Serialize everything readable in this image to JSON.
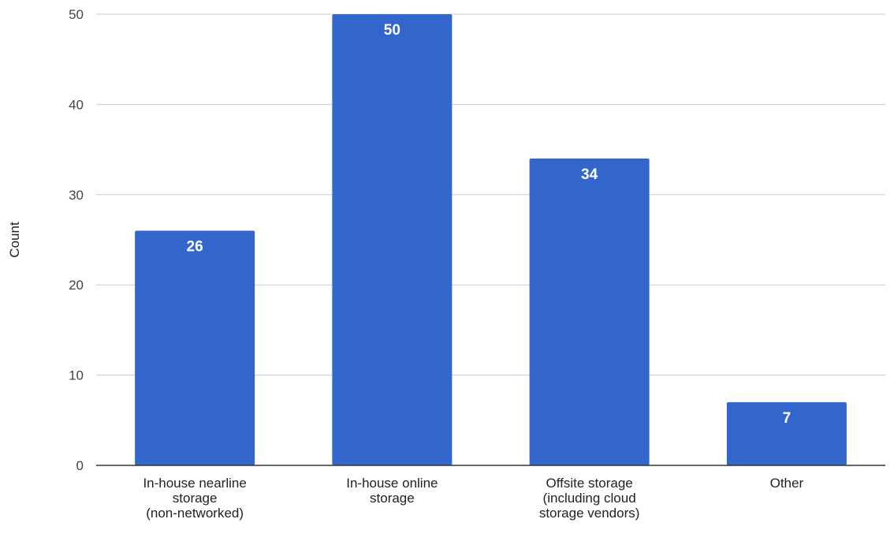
{
  "chart_data": {
    "type": "bar",
    "categories": [
      [
        "In-house nearline",
        "storage",
        "(non-networked)"
      ],
      [
        "In-house online",
        "storage"
      ],
      [
        "Offsite storage",
        "(including cloud",
        "storage vendors)"
      ],
      [
        "Other"
      ]
    ],
    "values": [
      26,
      50,
      34,
      7
    ],
    "data_labels": [
      "26",
      "50",
      "34",
      "7"
    ],
    "ylabel": "Count",
    "xlabel": "",
    "title": "",
    "ylim": [
      0,
      50
    ],
    "yticks": [
      0,
      10,
      20,
      30,
      40,
      50
    ],
    "grid": true,
    "bar_color": "#3366cc",
    "gridline_color": "#cccccc",
    "axis_color": "#333333"
  }
}
